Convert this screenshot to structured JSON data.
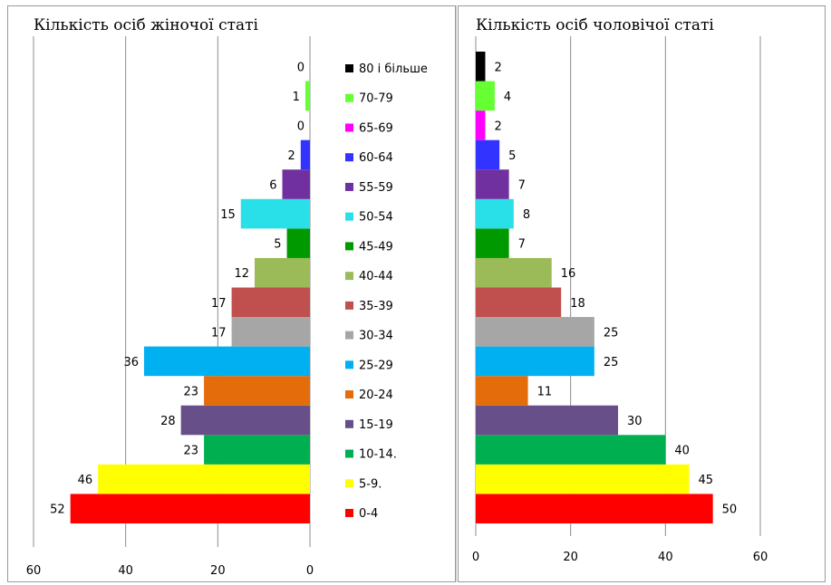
{
  "chart_data": [
    {
      "type": "bar",
      "orientation": "horizontal",
      "title": "Кількість осіб жіночої статі",
      "categories": [
        "0-4",
        "5-9.",
        "10-14.",
        "15-19",
        "20-24",
        "25-29",
        "30-34",
        "35-39",
        "40-44",
        "45-49",
        "50-54",
        "55-59",
        "60-64",
        "65-69",
        "70-79",
        "80 і більше"
      ],
      "values": [
        52,
        46,
        23,
        28,
        23,
        36,
        17,
        17,
        12,
        5,
        15,
        6,
        2,
        0,
        1,
        0
      ],
      "data_labels": [
        "52",
        "46",
        "23",
        "28",
        "23",
        "36",
        "17",
        "17",
        "12",
        "5",
        "15",
        "6",
        "2",
        "0",
        "1",
        "0"
      ],
      "xlim": [
        60,
        0
      ],
      "x_reversed": true,
      "x_ticks": [
        "60",
        "40",
        "20",
        "0"
      ],
      "grid": "vertical",
      "legend_position": "right",
      "legend_entries": [
        "80 і більше",
        "70-79",
        "65-69",
        "60-64",
        "55-59",
        "50-54",
        "45-49",
        "40-44",
        "35-39",
        "30-34",
        "25-29",
        "20-24",
        "15-19",
        "10-14.",
        "5-9.",
        "0-4"
      ]
    },
    {
      "type": "bar",
      "orientation": "horizontal",
      "title": "Кількість осіб чоловічої статі",
      "categories": [
        "0-4",
        "5-9.",
        "10-14.",
        "15-19",
        "20-24",
        "25-29",
        "30-34",
        "35-39",
        "40-44",
        "45-49",
        "50-54",
        "55-59",
        "60-64",
        "65-69",
        "70-79",
        "80 і більше"
      ],
      "values": [
        50,
        45,
        40,
        30,
        11,
        25,
        25,
        18,
        16,
        7,
        8,
        7,
        5,
        2,
        4,
        2
      ],
      "data_labels": [
        "50",
        "45",
        "40",
        "30",
        "11",
        "25",
        "25",
        "18",
        "16",
        "7",
        "8",
        "7",
        "5",
        "2",
        "4",
        "2"
      ],
      "xlim": [
        0,
        60
      ],
      "x_ticks": [
        "0",
        "20",
        "40",
        "60"
      ],
      "grid": "vertical"
    }
  ],
  "colors": {
    "0-4": "#ff0000",
    "5-9.": "#ffff00",
    "10-14.": "#00b050",
    "15-19": "#674f89",
    "20-24": "#e46c0a",
    "25-29": "#00b0f0",
    "30-34": "#a6a6a6",
    "35-39": "#c0504d",
    "40-44": "#9bbb59",
    "45-49": "#009900",
    "50-54": "#2ae0e8",
    "55-59": "#7030a0",
    "60-64": "#3333ff",
    "65-69": "#ff00ff",
    "70-79": "#66ff33",
    "80 і більше": "#000000"
  }
}
